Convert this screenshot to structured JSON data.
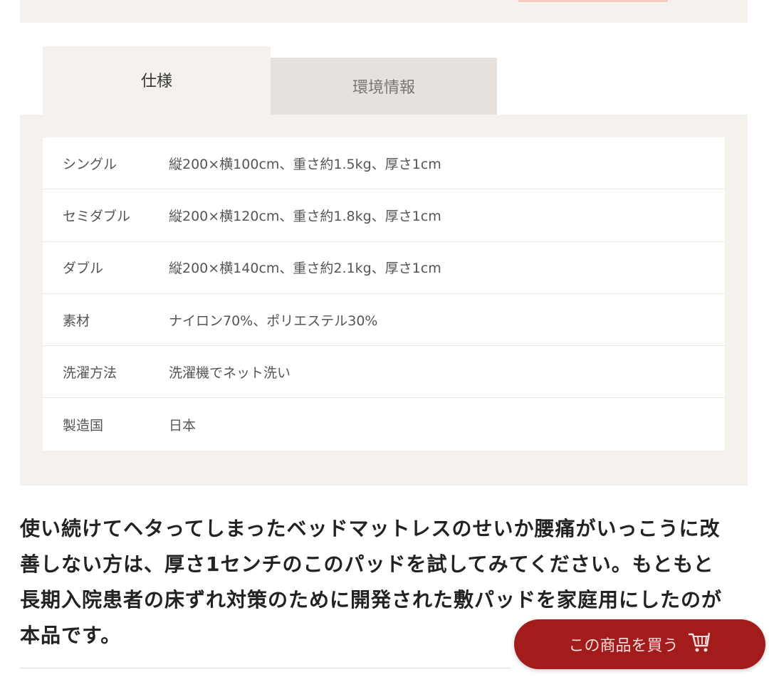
{
  "tabs": [
    {
      "label": "仕様",
      "active": true
    },
    {
      "label": "環境情報",
      "active": false
    }
  ],
  "spec_rows": [
    {
      "label": "シングル",
      "value": "縦200×横100cm、重さ約1.5kg、厚さ1cm"
    },
    {
      "label": "セミダブル",
      "value": "縦200×横120cm、重さ約1.8kg、厚さ1cm"
    },
    {
      "label": "ダブル",
      "value": "縦200×横140cm、重さ約2.1kg、厚さ1cm"
    },
    {
      "label": "素材",
      "value": "ナイロン70%、ポリエステル30%"
    },
    {
      "label": "洗濯方法",
      "value": "洗濯機でネット洗い"
    },
    {
      "label": "製造国",
      "value": "日本"
    }
  ],
  "description": "使い続けてヘタってしまったベッドマットレスのせいか腰痛がいっこうに改善しない方は、厚さ1センチのこのパッドを試してみてください。もともと長期入院患者の床ずれ対策のために開発された敷パッドを家庭用にしたのが本品です。",
  "buy_button": {
    "label": "この商品を買う",
    "icon": "cart-icon",
    "color": "#a31c1c"
  }
}
